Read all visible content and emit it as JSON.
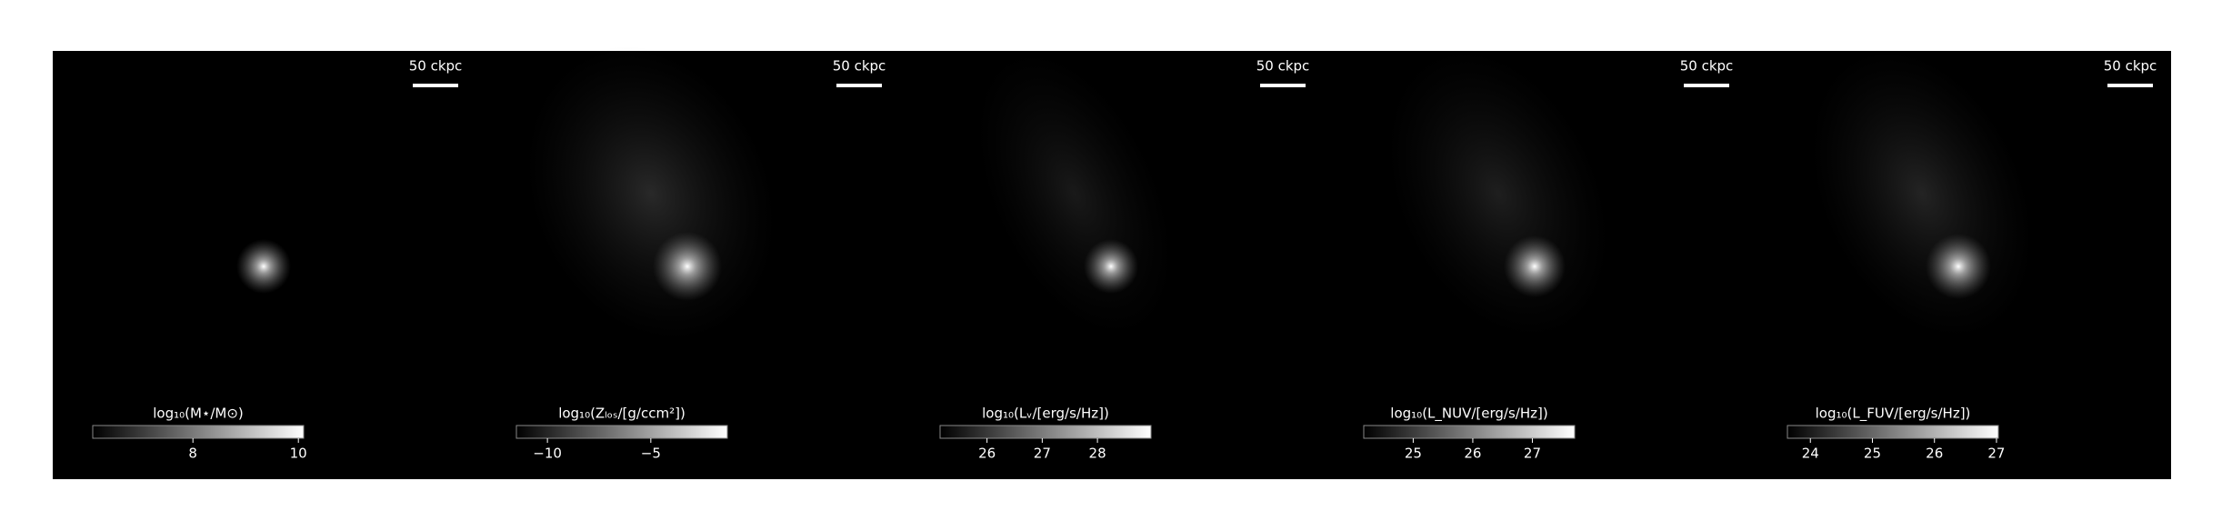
{
  "chart_data": [
    {
      "type": "image",
      "scale_label": "50 ckpc",
      "colorbar_label": "log₁₀(M⋆/M⊙)",
      "xlim": [
        6.1,
        10.1
      ],
      "xticks": [
        8,
        10
      ]
    },
    {
      "type": "image",
      "scale_label": "50 ckpc",
      "colorbar_label": "log₁₀(Zₗₒₛ/[g/ccm²])",
      "xlim": [
        -11.5,
        -1.3
      ],
      "xticks": [
        {
          "value": -10,
          "label": "−10"
        },
        {
          "value": -5,
          "label": "−5"
        }
      ]
    },
    {
      "type": "image",
      "scale_label": "50 ckpc",
      "colorbar_label": "log₁₀(Lᵥ/[erg/s/Hz])",
      "xlim": [
        25.15,
        28.97
      ],
      "xticks": [
        26,
        27,
        28
      ]
    },
    {
      "type": "image",
      "scale_label": "50 ckpc",
      "colorbar_label": "log₁₀(L_NUV/[erg/s/Hz])",
      "xlim": [
        24.17,
        27.71
      ],
      "xticks": [
        25,
        26,
        27
      ]
    },
    {
      "type": "image",
      "scale_label": "50 ckpc",
      "colorbar_label": "log₁₀(L_FUV/[erg/s/Hz])",
      "xlim": [
        23.63,
        27.03
      ],
      "xticks": [
        24,
        25,
        26,
        27
      ]
    }
  ]
}
